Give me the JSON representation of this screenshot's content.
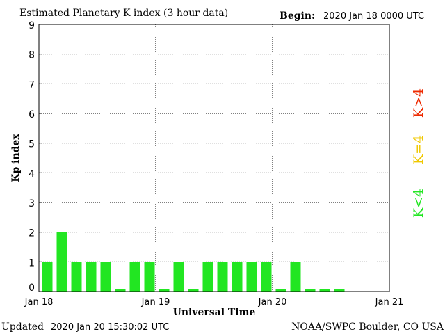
{
  "header": {
    "title": "Estimated Planetary K index (3 hour data)",
    "begin_label": "Begin:",
    "begin_value": "2020 Jan 18 0000 UTC"
  },
  "footer": {
    "updated_label": "Updated",
    "updated_value": "2020 Jan 20 15:30:02 UTC",
    "source": "NOAA/SWPC Boulder, CO USA"
  },
  "legend": {
    "low": {
      "text": "K<4",
      "color": "#22e622"
    },
    "mid": {
      "text": "K=4",
      "color": "#f0c800"
    },
    "high": {
      "text": "K>4",
      "color": "#ee2a00"
    }
  },
  "chart_data": {
    "type": "bar",
    "title": "Estimated Planetary K index (3 hour data)",
    "xlabel": "Universal Time",
    "ylabel": "Kp index",
    "ylim": [
      0,
      9
    ],
    "yticks": [
      0,
      1,
      2,
      3,
      4,
      5,
      6,
      7,
      8,
      9
    ],
    "xticks": [
      "Jan 18",
      "Jan 19",
      "Jan 20",
      "Jan 21"
    ],
    "slots_per_day": 8,
    "days": 3,
    "grid": true,
    "values": [
      1,
      2,
      1,
      1,
      1,
      0,
      1,
      1,
      0,
      1,
      0,
      1,
      1,
      1,
      1,
      1,
      0,
      1,
      0,
      0,
      0
    ],
    "bar_color": "#22e622"
  }
}
